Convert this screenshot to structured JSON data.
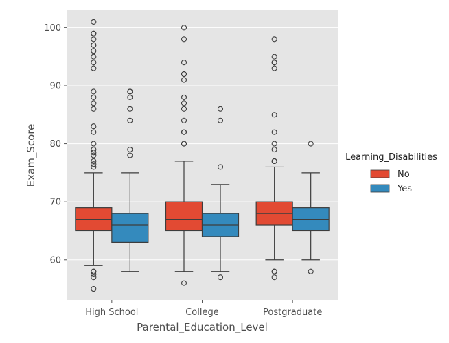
{
  "chart_data": {
    "type": "box",
    "xlabel": "Parental_Education_Level",
    "ylabel": "Exam_Score",
    "categories": [
      "High School",
      "College",
      "Postgraduate"
    ],
    "y_ticks": [
      60,
      70,
      80,
      90,
      100
    ],
    "ylim": [
      53,
      103
    ],
    "grid": true,
    "legend": {
      "title": "Learning_Disabilities",
      "placement": "right",
      "entries": [
        "No",
        "Yes"
      ]
    },
    "series": [
      {
        "name": "No",
        "color": "#E24A33",
        "boxes": [
          {
            "category": "High School",
            "whisker_low": 59,
            "q1": 65,
            "median": 67,
            "q3": 69,
            "whisker_high": 75,
            "outliers": [
              55,
              57,
              57.5,
              58,
              58,
              76,
              76.5,
              77,
              78,
              78.5,
              79,
              80,
              82,
              83,
              86,
              87,
              88,
              89,
              93,
              94,
              95,
              96,
              97,
              97,
              98,
              99,
              99,
              101
            ]
          },
          {
            "category": "College",
            "whisker_low": 58,
            "q1": 65,
            "median": 67,
            "q3": 70,
            "whisker_high": 77,
            "outliers": [
              56,
              80,
              80,
              82,
              82,
              84,
              86,
              87,
              88,
              91,
              92,
              92,
              94,
              98,
              100
            ]
          },
          {
            "category": "Postgraduate",
            "whisker_low": 60,
            "q1": 66,
            "median": 68,
            "q3": 70,
            "whisker_high": 76,
            "outliers": [
              57,
              58,
              58,
              77,
              77,
              79,
              80,
              82,
              85,
              93,
              94,
              94,
              95,
              98
            ]
          }
        ]
      },
      {
        "name": "Yes",
        "color": "#348ABD",
        "boxes": [
          {
            "category": "High School",
            "whisker_low": 58,
            "q1": 63,
            "median": 66,
            "q3": 68,
            "whisker_high": 75,
            "outliers": [
              78,
              79,
              84,
              86,
              88,
              89,
              89
            ]
          },
          {
            "category": "College",
            "whisker_low": 58,
            "q1": 64,
            "median": 66,
            "q3": 68,
            "whisker_high": 73,
            "outliers": [
              57,
              76,
              84,
              86
            ]
          },
          {
            "category": "Postgraduate",
            "whisker_low": 60,
            "q1": 65,
            "median": 67,
            "q3": 69,
            "whisker_high": 75,
            "outliers": [
              58,
              80
            ]
          }
        ]
      }
    ]
  }
}
